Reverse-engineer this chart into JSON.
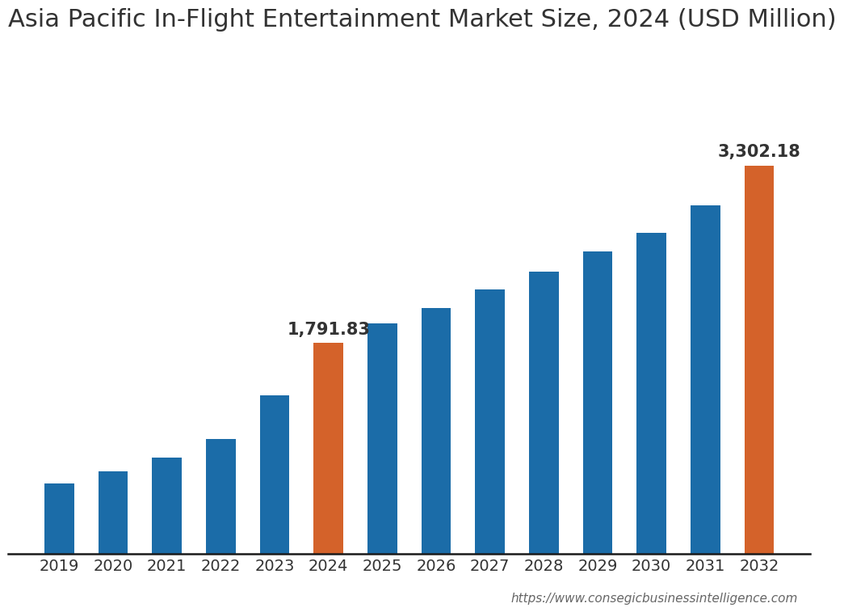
{
  "title": "Asia Pacific In-Flight Entertainment Market Size, 2024 (USD Million)",
  "categories": [
    "2019",
    "2020",
    "2021",
    "2022",
    "2023",
    "2024",
    "2025",
    "2026",
    "2027",
    "2028",
    "2029",
    "2030",
    "2031",
    "2032"
  ],
  "values": [
    600,
    700,
    820,
    980,
    1350,
    1791.83,
    1960,
    2090,
    2250,
    2400,
    2570,
    2730,
    2960,
    3302.18
  ],
  "bar_colors": [
    "#1b6ca8",
    "#1b6ca8",
    "#1b6ca8",
    "#1b6ca8",
    "#1b6ca8",
    "#d4622a",
    "#1b6ca8",
    "#1b6ca8",
    "#1b6ca8",
    "#1b6ca8",
    "#1b6ca8",
    "#1b6ca8",
    "#1b6ca8",
    "#d4622a"
  ],
  "annotate_indices": [
    5,
    13
  ],
  "annotate_labels": [
    "1,791.83",
    "3,302.18"
  ],
  "title_fontsize": 22,
  "tick_fontsize": 14,
  "annotation_fontsize": 15,
  "background_color": "#ffffff",
  "bar_width": 0.55,
  "ylim": [
    0,
    4200
  ],
  "website_text": "https://www.consegicbusinessintelligence.com",
  "title_color": "#333333",
  "tick_color": "#333333",
  "spine_color": "#1a1a1a",
  "website_color": "#666666"
}
